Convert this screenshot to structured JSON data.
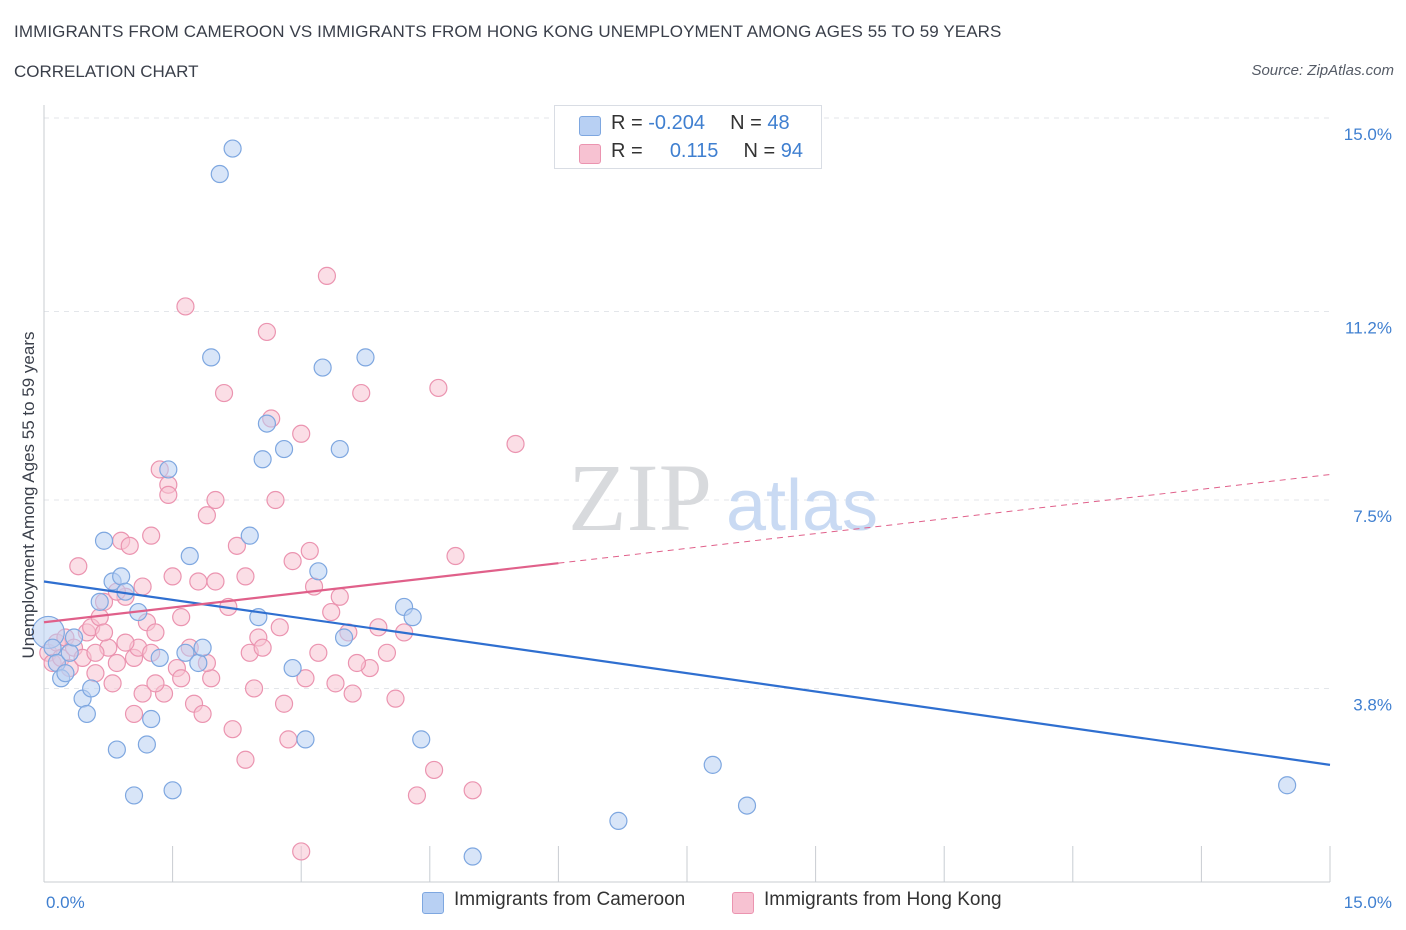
{
  "header": {
    "title": "IMMIGRANTS FROM CAMEROON VS IMMIGRANTS FROM HONG KONG UNEMPLOYMENT AMONG AGES 55 TO 59 YEARS",
    "subtitle": "CORRELATION CHART",
    "source": "Source: ZipAtlas.com"
  },
  "watermark": {
    "zip": "ZIP",
    "atlas": "atlas"
  },
  "legend": {
    "rows": [
      {
        "r_label": "R =",
        "r_value": "-0.204",
        "n_label": "N =",
        "n_value": "48"
      },
      {
        "r_label": "R =",
        "r_value": "0.115",
        "n_label": "N =",
        "n_value": "94"
      }
    ]
  },
  "bottom_legend": {
    "cameroon": "Immigrants from Cameroon",
    "hongkong": "Immigrants from Hong Kong"
  },
  "chart_data": {
    "type": "scatter",
    "xlabel": "",
    "ylabel": "Unemployment Among Ages 55 to 59 years",
    "xlim": [
      0,
      15
    ],
    "ylim": [
      0,
      15
    ],
    "x_tick_labels": [
      "0.0%",
      "15.0%"
    ],
    "y_tick_labels": [
      {
        "value": 3.8,
        "label": "3.8%"
      },
      {
        "value": 7.5,
        "label": "7.5%"
      },
      {
        "value": 11.2,
        "label": "11.2%"
      },
      {
        "value": 15.0,
        "label": "15.0%"
      }
    ],
    "colors": {
      "cameroon_fill": "#b8d0f3",
      "cameroon_stroke": "#7ea7e0",
      "cameroon_line": "#2f6fd0",
      "hongkong_fill": "#f7c2d2",
      "hongkong_stroke": "#eb94b0",
      "hongkong_line": "#e0608a",
      "axis_label": "#3f7fd0"
    },
    "series": [
      {
        "name": "Immigrants from Cameroon",
        "points": [
          [
            0.05,
            4.9
          ],
          [
            0.1,
            4.6
          ],
          [
            0.15,
            4.3
          ],
          [
            0.2,
            4.0
          ],
          [
            0.25,
            4.1
          ],
          [
            0.3,
            4.5
          ],
          [
            0.35,
            4.8
          ],
          [
            0.45,
            3.6
          ],
          [
            0.5,
            3.3
          ],
          [
            0.55,
            3.8
          ],
          [
            0.65,
            5.5
          ],
          [
            0.7,
            6.7
          ],
          [
            0.8,
            5.9
          ],
          [
            0.85,
            2.6
          ],
          [
            0.9,
            6.0
          ],
          [
            0.95,
            5.7
          ],
          [
            1.05,
            1.7
          ],
          [
            1.1,
            5.3
          ],
          [
            1.2,
            2.7
          ],
          [
            1.25,
            3.2
          ],
          [
            1.35,
            4.4
          ],
          [
            1.45,
            8.1
          ],
          [
            1.5,
            1.8
          ],
          [
            1.65,
            4.5
          ],
          [
            1.7,
            6.4
          ],
          [
            1.8,
            4.3
          ],
          [
            1.85,
            4.6
          ],
          [
            1.95,
            10.3
          ],
          [
            2.05,
            13.9
          ],
          [
            2.2,
            14.4
          ],
          [
            2.4,
            6.8
          ],
          [
            2.5,
            5.2
          ],
          [
            2.55,
            8.3
          ],
          [
            2.6,
            9.0
          ],
          [
            2.8,
            8.5
          ],
          [
            2.9,
            4.2
          ],
          [
            3.05,
            2.8
          ],
          [
            3.2,
            6.1
          ],
          [
            3.25,
            10.1
          ],
          [
            3.45,
            8.5
          ],
          [
            3.5,
            4.8
          ],
          [
            3.75,
            10.3
          ],
          [
            4.2,
            5.4
          ],
          [
            4.3,
            5.2
          ],
          [
            4.4,
            2.8
          ],
          [
            5.0,
            0.5
          ],
          [
            6.7,
            1.2
          ],
          [
            7.8,
            2.3
          ],
          [
            8.2,
            1.5
          ],
          [
            14.5,
            1.9
          ]
        ],
        "trend": {
          "x": [
            0,
            15
          ],
          "y": [
            5.9,
            2.3
          ]
        }
      },
      {
        "name": "Immigrants from Hong Kong",
        "points": [
          [
            0.05,
            4.5
          ],
          [
            0.1,
            4.3
          ],
          [
            0.15,
            4.7
          ],
          [
            0.2,
            4.4
          ],
          [
            0.25,
            4.8
          ],
          [
            0.3,
            4.2
          ],
          [
            0.35,
            4.6
          ],
          [
            0.4,
            6.2
          ],
          [
            0.45,
            4.4
          ],
          [
            0.5,
            4.9
          ],
          [
            0.55,
            5.0
          ],
          [
            0.6,
            4.1
          ],
          [
            0.65,
            5.2
          ],
          [
            0.7,
            5.5
          ],
          [
            0.75,
            4.6
          ],
          [
            0.8,
            3.9
          ],
          [
            0.85,
            4.3
          ],
          [
            0.9,
            6.7
          ],
          [
            0.95,
            5.6
          ],
          [
            1.0,
            6.6
          ],
          [
            1.05,
            4.4
          ],
          [
            1.1,
            4.6
          ],
          [
            1.15,
            5.8
          ],
          [
            1.2,
            5.1
          ],
          [
            1.25,
            4.5
          ],
          [
            1.3,
            4.9
          ],
          [
            1.35,
            8.1
          ],
          [
            1.4,
            3.7
          ],
          [
            1.45,
            7.8
          ],
          [
            1.5,
            6.0
          ],
          [
            1.55,
            4.2
          ],
          [
            1.6,
            5.2
          ],
          [
            1.65,
            11.3
          ],
          [
            1.7,
            4.6
          ],
          [
            1.75,
            3.5
          ],
          [
            1.8,
            5.9
          ],
          [
            1.85,
            3.3
          ],
          [
            1.9,
            7.2
          ],
          [
            1.95,
            4.0
          ],
          [
            2.0,
            7.5
          ],
          [
            2.1,
            9.6
          ],
          [
            2.2,
            3.0
          ],
          [
            2.25,
            6.6
          ],
          [
            2.35,
            2.4
          ],
          [
            2.4,
            4.5
          ],
          [
            2.5,
            4.8
          ],
          [
            2.6,
            10.8
          ],
          [
            2.65,
            9.1
          ],
          [
            2.7,
            7.5
          ],
          [
            2.8,
            3.5
          ],
          [
            2.85,
            2.8
          ],
          [
            2.9,
            6.3
          ],
          [
            3.0,
            8.8
          ],
          [
            3.05,
            4.0
          ],
          [
            3.1,
            6.5
          ],
          [
            3.15,
            5.8
          ],
          [
            3.2,
            4.5
          ],
          [
            3.3,
            11.9
          ],
          [
            3.35,
            5.3
          ],
          [
            3.45,
            5.6
          ],
          [
            3.55,
            4.9
          ],
          [
            3.6,
            3.7
          ],
          [
            3.7,
            9.6
          ],
          [
            3.8,
            4.2
          ],
          [
            4.0,
            4.5
          ],
          [
            4.1,
            3.6
          ],
          [
            4.2,
            4.9
          ],
          [
            4.35,
            1.7
          ],
          [
            4.55,
            2.2
          ],
          [
            4.6,
            9.7
          ],
          [
            4.8,
            6.4
          ],
          [
            5.0,
            1.8
          ],
          [
            5.5,
            8.6
          ],
          [
            3.0,
            0.6
          ],
          [
            1.15,
            3.7
          ],
          [
            0.7,
            4.9
          ],
          [
            1.9,
            4.3
          ],
          [
            2.45,
            3.8
          ],
          [
            1.3,
            3.9
          ],
          [
            0.95,
            4.7
          ],
          [
            2.75,
            5.0
          ],
          [
            3.4,
            3.9
          ],
          [
            1.6,
            4.0
          ],
          [
            0.85,
            5.7
          ],
          [
            2.15,
            5.4
          ],
          [
            3.65,
            4.3
          ],
          [
            1.25,
            6.8
          ],
          [
            0.6,
            4.5
          ],
          [
            2.55,
            4.6
          ],
          [
            3.9,
            5.0
          ],
          [
            1.45,
            7.6
          ],
          [
            2.0,
            5.9
          ],
          [
            2.35,
            6.0
          ],
          [
            1.05,
            3.3
          ]
        ],
        "trend": {
          "x": [
            0,
            15
          ],
          "y": [
            5.1,
            8.0
          ],
          "solid_to_x": 6.0
        }
      }
    ]
  }
}
